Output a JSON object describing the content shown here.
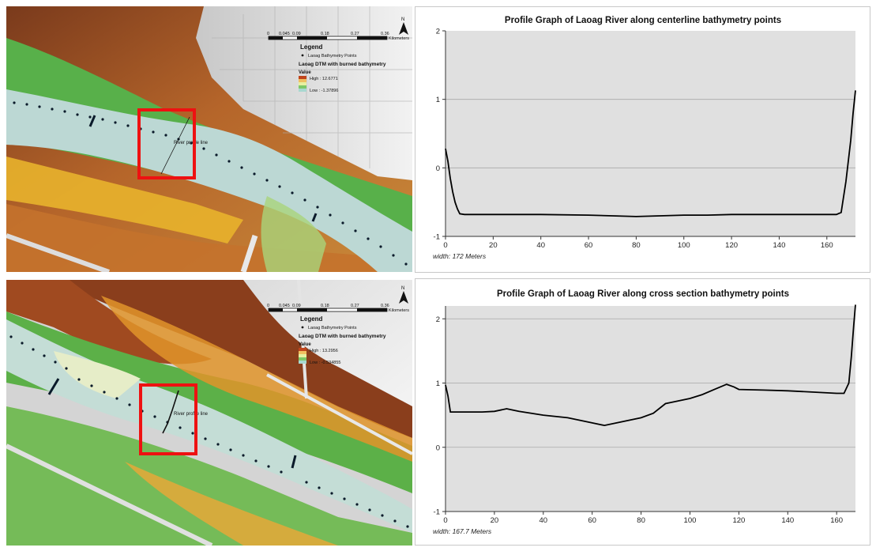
{
  "colors": {
    "plot_bg": "#e0e0e0",
    "line": "#000000",
    "highlight_box": "#ee1111",
    "dem_high": "#8b3a1a",
    "dem_mid": "#e0a020",
    "dem_green": "#4caf50",
    "river": "#bcd8d4"
  },
  "maps": [
    {
      "scale_ticks": [
        "0",
        "0.045",
        "0.09",
        "0.18",
        "0.27",
        "0.36"
      ],
      "scale_unit": "Kilometers",
      "north": "N",
      "legend_title": "Legend",
      "points_label": "Laoag Bathymetry Points",
      "dtm_label": "Laoag DTM with burned bathymetry",
      "value_label": "Value",
      "high_label": "High : 12.6771",
      "low_label": "Low : -1.37896",
      "profile_label": "River profile line"
    },
    {
      "scale_ticks": [
        "0",
        "0.045",
        "0.09",
        "0.18",
        "0.27",
        "0.36"
      ],
      "scale_unit": "Kilometers",
      "north": "N",
      "legend_title": "Legend",
      "points_label": "Laoag Bathymetry Points",
      "dtm_label": "Laoag DTM with burned bathymetry",
      "value_label": "Value",
      "high_label": "High : 13.2956",
      "low_label": "Low : -0.534855",
      "profile_label": "River profile line"
    }
  ],
  "chart_data": [
    {
      "type": "line",
      "title": "Profile Graph of Laoag River along centerline bathymetry points",
      "width_label": "width: 172 Meters",
      "xlim": [
        0,
        172
      ],
      "ylim": [
        -1,
        2
      ],
      "xticks": [
        0,
        20,
        40,
        60,
        80,
        100,
        120,
        140,
        160
      ],
      "yticks": [
        -1,
        0,
        1,
        2
      ],
      "grid": true,
      "x": [
        0,
        1,
        2,
        3,
        4,
        5,
        6,
        8,
        10,
        20,
        40,
        60,
        70,
        80,
        90,
        100,
        110,
        120,
        130,
        140,
        150,
        160,
        164,
        166,
        168,
        170,
        171,
        172
      ],
      "y": [
        0.28,
        0.1,
        -0.15,
        -0.35,
        -0.5,
        -0.6,
        -0.67,
        -0.68,
        -0.68,
        -0.68,
        -0.68,
        -0.69,
        -0.7,
        -0.71,
        -0.7,
        -0.69,
        -0.69,
        -0.68,
        -0.68,
        -0.68,
        -0.68,
        -0.68,
        -0.68,
        -0.65,
        -0.2,
        0.4,
        0.8,
        1.13
      ]
    },
    {
      "type": "line",
      "title": "Profile Graph of Laoag River along cross section bathymetry points",
      "width_label": "width: 167.7 Meters",
      "xlim": [
        0,
        167.7
      ],
      "ylim": [
        -1,
        2.2
      ],
      "xticks": [
        0,
        20,
        40,
        60,
        80,
        100,
        120,
        140,
        160
      ],
      "yticks": [
        -1,
        0,
        1,
        2
      ],
      "grid": true,
      "x": [
        0,
        1,
        2,
        5,
        10,
        15,
        20,
        25,
        30,
        40,
        50,
        55,
        60,
        65,
        70,
        75,
        80,
        85,
        90,
        95,
        100,
        105,
        110,
        115,
        118,
        120,
        130,
        140,
        150,
        160,
        163,
        165,
        166,
        167,
        167.7
      ],
      "y": [
        0.97,
        0.8,
        0.55,
        0.55,
        0.55,
        0.55,
        0.56,
        0.6,
        0.56,
        0.5,
        0.46,
        0.42,
        0.38,
        0.34,
        0.38,
        0.42,
        0.46,
        0.53,
        0.68,
        0.72,
        0.76,
        0.82,
        0.9,
        0.98,
        0.94,
        0.9,
        0.89,
        0.88,
        0.86,
        0.84,
        0.84,
        1.0,
        1.4,
        1.9,
        2.22
      ]
    }
  ]
}
